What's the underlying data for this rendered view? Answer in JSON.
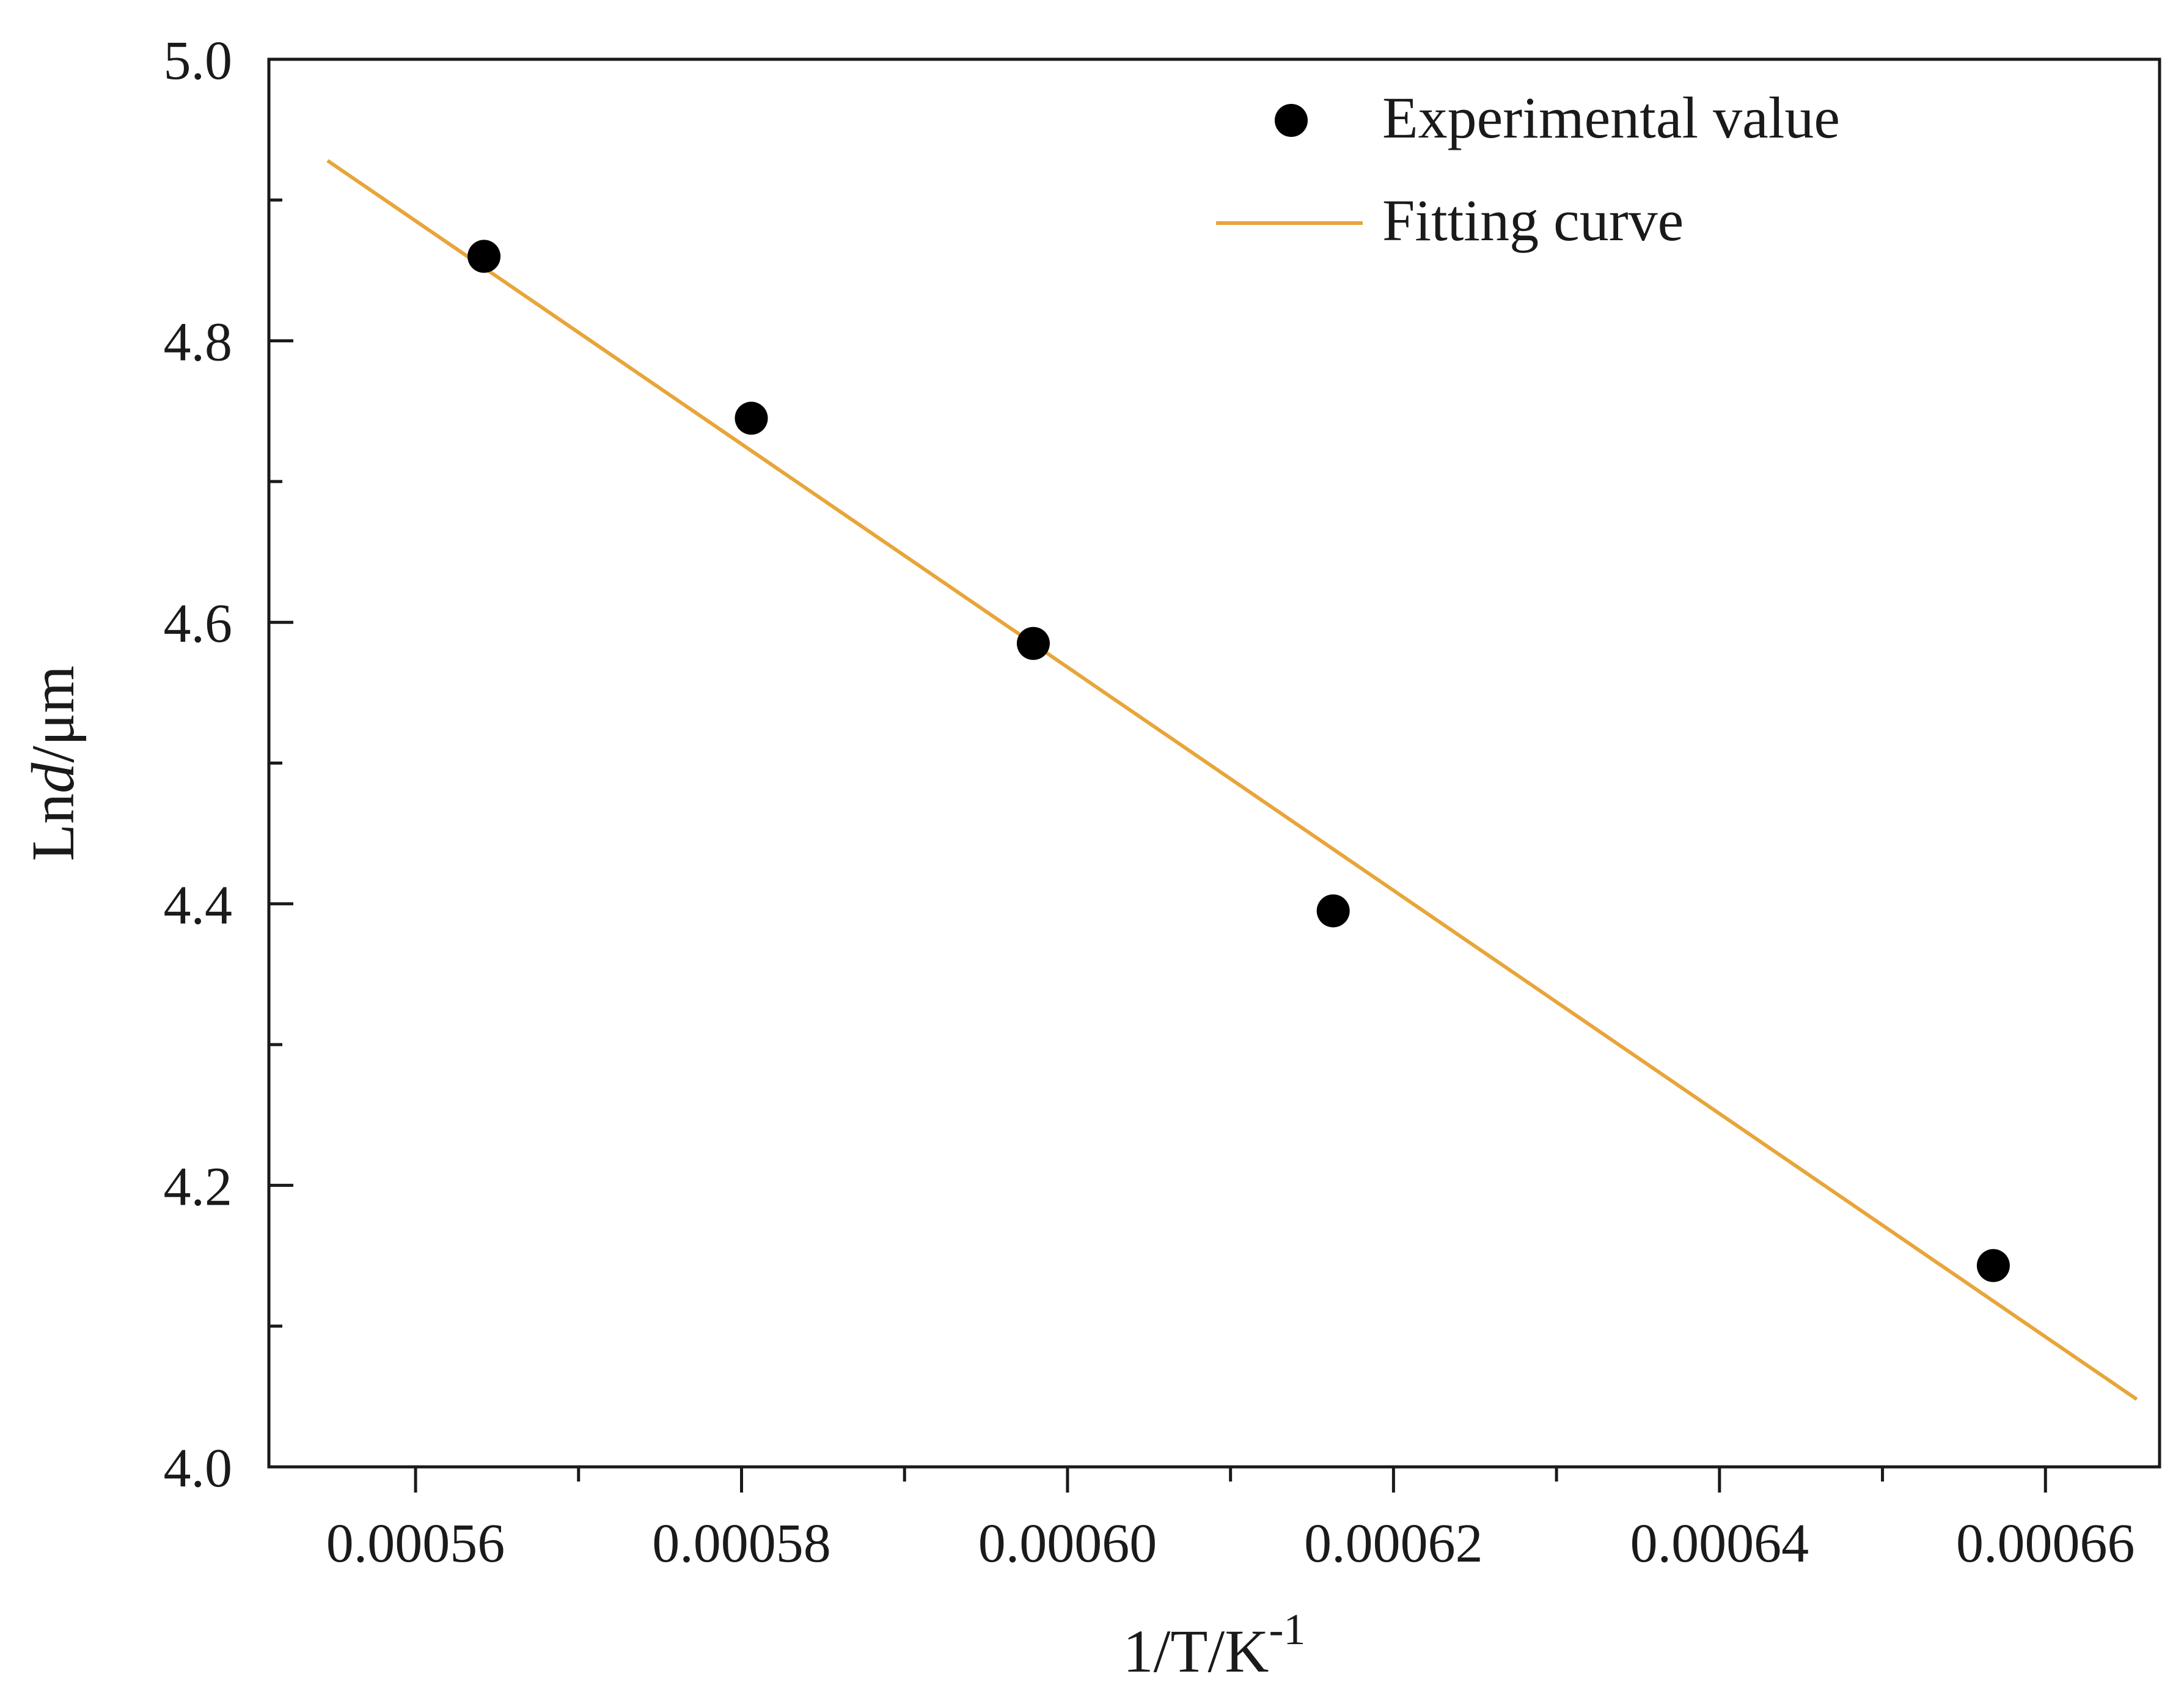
{
  "chart_data": {
    "type": "scatter",
    "xlabel": "1/T/K",
    "xlabel_superscript": "-1",
    "ylabel": "Ln",
    "ylabel_italic": "d",
    "ylabel_unit": "/μm",
    "xlim": [
      0.000551,
      0.000667
    ],
    "ylim": [
      4.0,
      5.0
    ],
    "x_ticks": [
      0.00056,
      0.00058,
      0.0006,
      0.00062,
      0.00064,
      0.00066
    ],
    "x_tick_labels": [
      "0.00056",
      "0.00058",
      "0.00060",
      "0.00062",
      "0.00064",
      "0.00066"
    ],
    "y_ticks": [
      4.0,
      4.2,
      4.4,
      4.6,
      4.8,
      5.0
    ],
    "y_tick_labels": [
      "4.0",
      "4.2",
      "4.4",
      "4.6",
      "4.8",
      "5.0"
    ],
    "grid": false,
    "legend_position": "top-right",
    "series": [
      {
        "name": "Experimental value",
        "kind": "scatter",
        "color": "#000000",
        "x": [
          0.0005642,
          0.0005806,
          0.0005979,
          0.0006163,
          0.0006568
        ],
        "y": [
          4.86,
          4.745,
          4.585,
          4.395,
          4.143
        ]
      },
      {
        "name": "Fitting curve",
        "kind": "line",
        "color": "#E8A53A",
        "x": [
          0.0005546,
          0.0006656
        ],
        "y": [
          4.928,
          4.048
        ]
      }
    ]
  }
}
